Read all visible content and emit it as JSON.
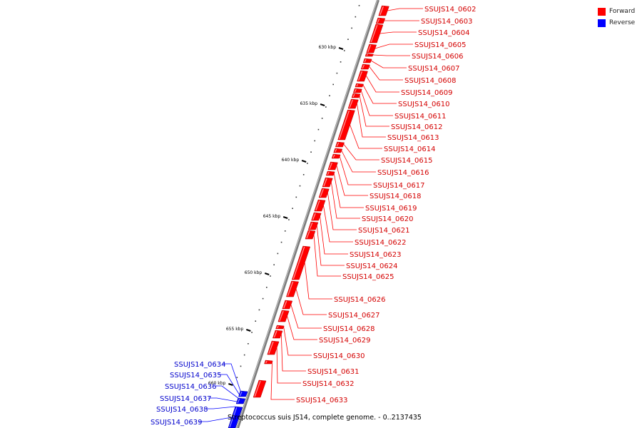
{
  "legend": {
    "forward": {
      "label": "Forward",
      "color": "#ff0000"
    },
    "reverse": {
      "label": "Reverse",
      "color": "#0000ff"
    }
  },
  "caption": "Streptococcus suis JS14, complete genome. - 0..2137435",
  "axis": {
    "unit": "kbp",
    "labeled_ticks": [
      630,
      635,
      640,
      645,
      650,
      655,
      660
    ]
  },
  "forward_genes": [
    "SSUJS14_0602",
    "SSUJS14_0603",
    "SSUJS14_0604",
    "SSUJS14_0605",
    "SSUJS14_0606",
    "SSUJS14_0607",
    "SSUJS14_0608",
    "SSUJS14_0609",
    "SSUJS14_0610",
    "SSUJS14_0611",
    "SSUJS14_0612",
    "SSUJS14_0613",
    "SSUJS14_0614",
    "SSUJS14_0615",
    "SSUJS14_0616",
    "SSUJS14_0617",
    "SSUJS14_0618",
    "SSUJS14_0619",
    "SSUJS14_0620",
    "SSUJS14_0621",
    "SSUJS14_0622",
    "SSUJS14_0623",
    "SSUJS14_0624",
    "SSUJS14_0625",
    "SSUJS14_0626",
    "SSUJS14_0627",
    "SSUJS14_0628",
    "SSUJS14_0629",
    "SSUJS14_0630",
    "SSUJS14_0631",
    "SSUJS14_0632",
    "SSUJS14_0633"
  ],
  "reverse_genes": [
    "SSUJS14_0634",
    "SSUJS14_0635",
    "SSUJS14_0636",
    "SSUJS14_0637",
    "SSUJS14_0638",
    "SSUJS14_0639"
  ]
}
